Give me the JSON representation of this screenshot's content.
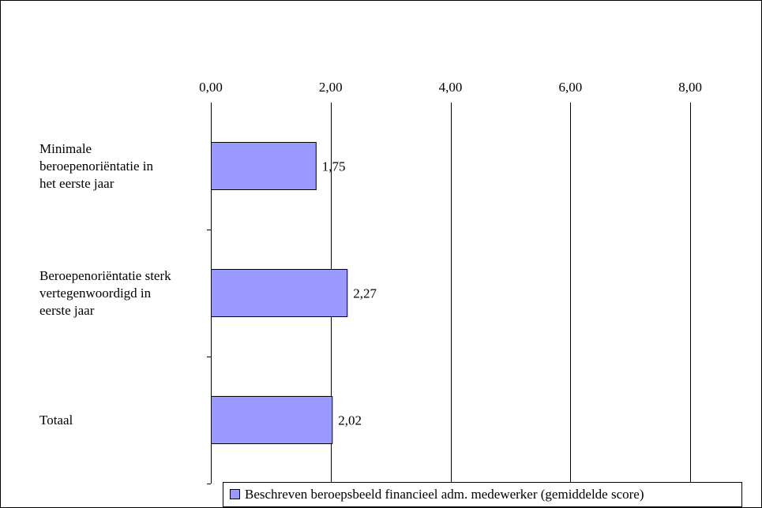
{
  "chart_data": {
    "type": "bar",
    "orientation": "horizontal",
    "categories": [
      "Minimale beroepenoriëntatie in het eerste jaar",
      "Beroepenoriëntatie sterk vertegenwoordigd in eerste jaar",
      "Totaal"
    ],
    "category_lines": [
      [
        "Minimale",
        "beroepenoriëntatie in",
        "het eerste jaar"
      ],
      [
        "Beroepenoriëntatie sterk",
        "vertegenwoordigd in",
        "eerste jaar"
      ],
      [
        "Totaal"
      ]
    ],
    "values": [
      1.75,
      2.27,
      2.02
    ],
    "value_labels": [
      "1,75",
      "2,27",
      "2,02"
    ],
    "xlim": [
      0,
      9
    ],
    "x_ticks": [
      0,
      2,
      4,
      6,
      8
    ],
    "x_tick_labels": [
      "0,00",
      "2,00",
      "4,00",
      "6,00",
      "8,00"
    ],
    "x_axis_position": "top",
    "grid": true,
    "legend_position": "bottom",
    "series": [
      {
        "name": "Beschreven beroepsbeeld financieel adm. medewerker (gemiddelde score)",
        "values": [
          1.75,
          2.27,
          2.02
        ]
      }
    ],
    "colors": {
      "bar_fill": "#9999ff",
      "bar_stroke": "#000000",
      "grid": "#000000",
      "background": "#ffffff"
    }
  }
}
